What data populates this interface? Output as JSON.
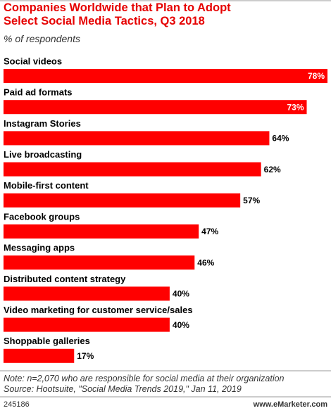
{
  "chart_data": {
    "type": "bar",
    "orientation": "horizontal",
    "title": "Companies Worldwide that Plan to Adopt Select Social Media Tactics, Q3 2018",
    "subtitle": "% of respondents",
    "categories": [
      "Social videos",
      "Paid ad formats",
      "Instagram Stories",
      "Live broadcasting",
      "Mobile-first content",
      "Facebook groups",
      "Messaging apps",
      "Distributed content strategy",
      "Video marketing for customer service/sales",
      "Shoppable galleries"
    ],
    "values": [
      78,
      73,
      64,
      62,
      57,
      47,
      46,
      40,
      40,
      17
    ],
    "value_labels": [
      "78%",
      "73%",
      "64%",
      "62%",
      "57%",
      "47%",
      "46%",
      "40%",
      "40%",
      "17%"
    ],
    "color": "#ff0000",
    "note": "Note: n=2,070 who are responsible for social media at their organization",
    "source": "Source: Hootsuite, \"Social Media Trends 2019,\" Jan 11, 2019",
    "footer_id": "245186",
    "footer_site": "www.eMarketer.com"
  }
}
